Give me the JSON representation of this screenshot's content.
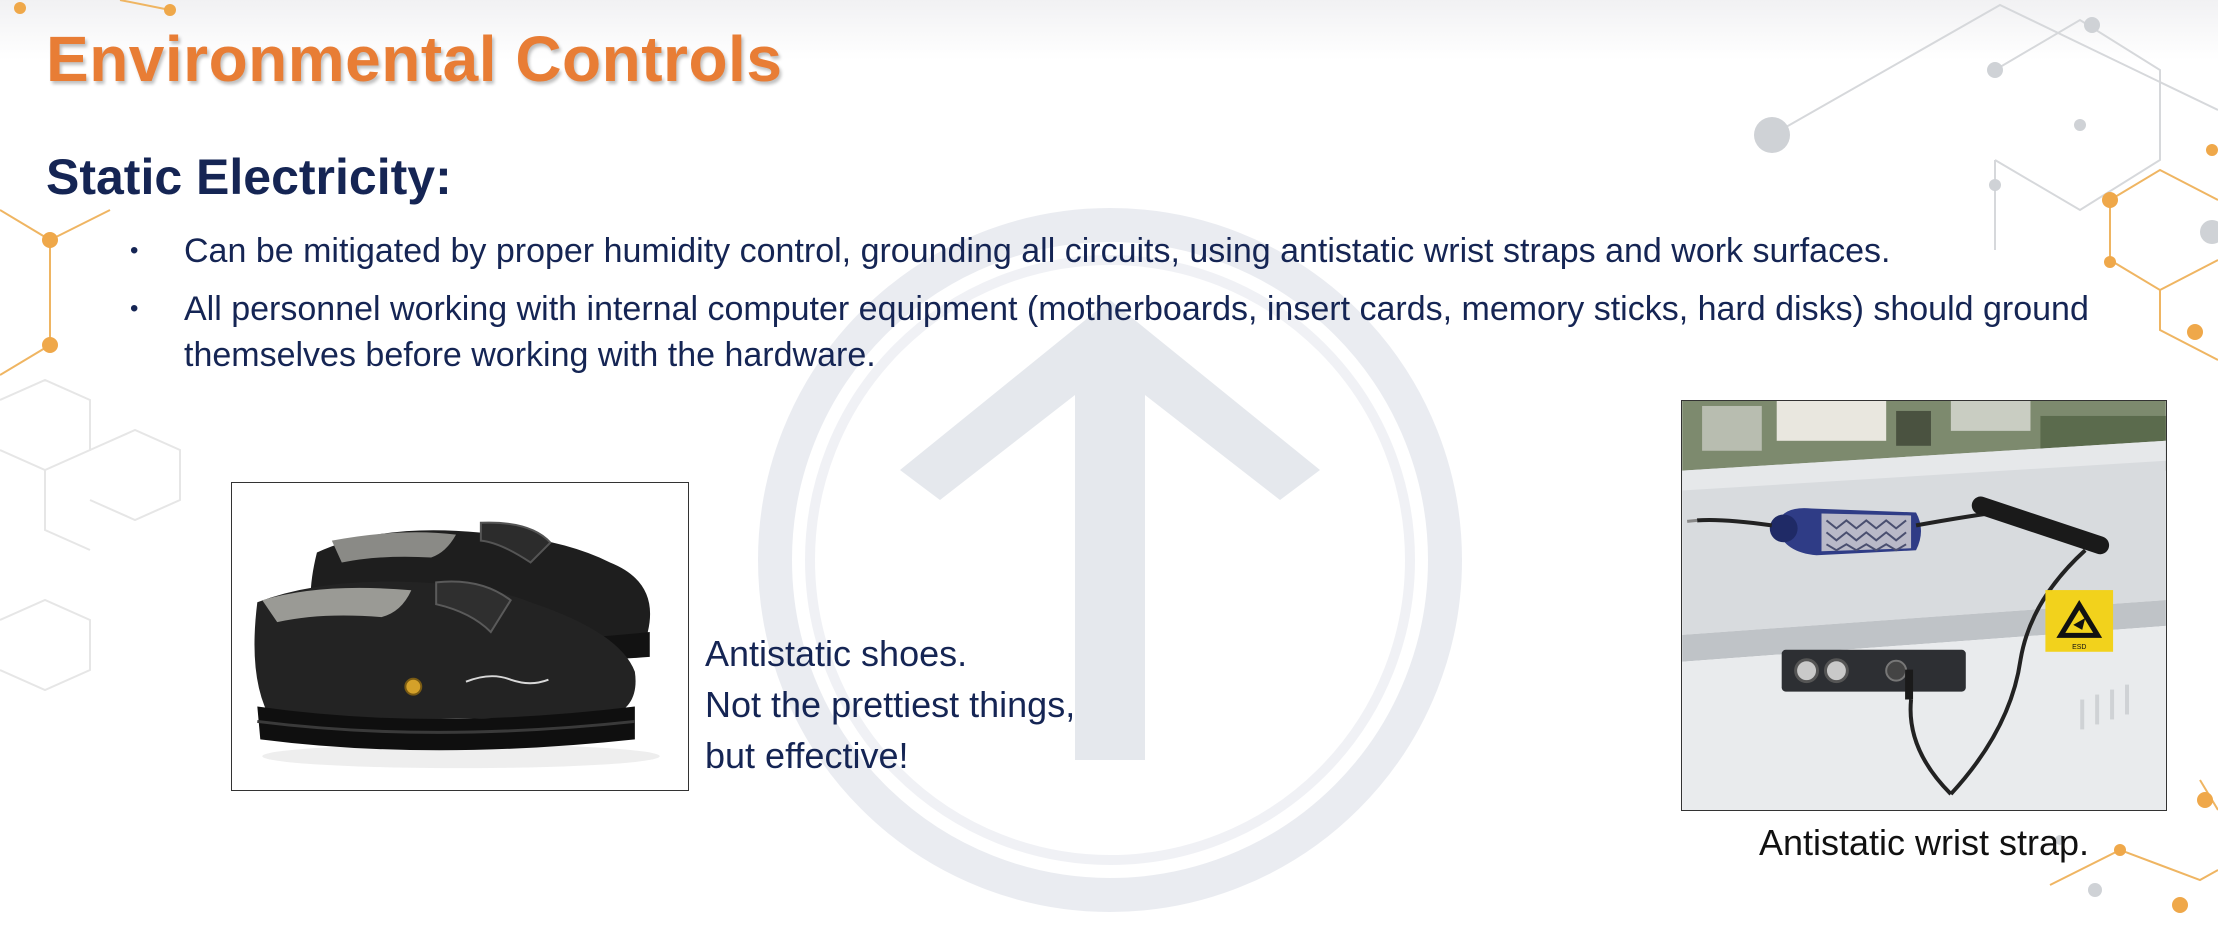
{
  "slide": {
    "title": "Environmental Controls",
    "subtitle": "Static Electricity:",
    "bullets": [
      {
        "text": "Can be mitigated by proper humidity control, grounding all circuits, using antistatic wrist straps and work surfaces."
      },
      {
        "text": "All personnel working with internal computer equipment (motherboards, insert cards, memory sticks, hard disks) should ground themselves before working with the hardware."
      }
    ],
    "bullet_glyph": "•",
    "shoes_caption": {
      "lines": [
        "Antistatic shoes.",
        "Not the prettiest things,",
        "but effective!"
      ]
    },
    "strap_caption": "Antistatic wrist strap.",
    "esd_label": "ESD"
  },
  "colors": {
    "title": "#e87d35",
    "body_text": "#152554",
    "watermark": "#dfe3ea",
    "network_lines": "#e8a64a",
    "network_nodes_gray": "#cfd2d6"
  },
  "icons": {
    "watermark": "circle-arrow-icon",
    "esd": "esd-warning-icon"
  }
}
